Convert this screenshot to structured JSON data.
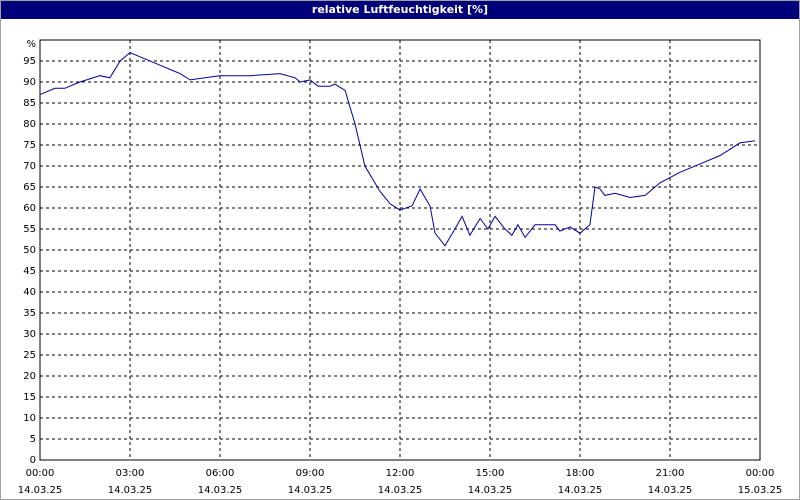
{
  "chart_data": {
    "type": "line",
    "title": "relative Luftfeuchtigkeit [%]",
    "y_unit_label": "%",
    "x": [
      0,
      0.5,
      0.83,
      1.33,
      2,
      2.33,
      2.67,
      3,
      3.5,
      4,
      4.5,
      4.67,
      5,
      5.5,
      6,
      7,
      8,
      8.5,
      8.67,
      9,
      9.27,
      9.67,
      9.83,
      10.17,
      10.5,
      10.83,
      11.33,
      11.67,
      12,
      12.4,
      12.67,
      13,
      13.17,
      13.5,
      13.83,
      14.07,
      14.33,
      14.67,
      14.93,
      15.17,
      15.5,
      15.73,
      15.93,
      16.17,
      16.5,
      17,
      17.17,
      17.33,
      17.67,
      18,
      18.33,
      18.5,
      18.67,
      18.83,
      19.17,
      19.67,
      20.17,
      20.67,
      21.33,
      22,
      22.67,
      23.33,
      23.83
    ],
    "series": [
      {
        "name": "relative Luftfeuchtigkeit",
        "color": "#0000a0",
        "values": [
          87,
          88.5,
          88.5,
          90,
          91.5,
          91,
          95,
          97,
          95.5,
          94,
          92.5,
          92,
          90.5,
          91,
          91.5,
          91.5,
          92,
          91,
          90,
          90.5,
          89,
          89,
          89.5,
          88,
          80,
          70,
          64,
          61,
          59.5,
          60.5,
          64.5,
          60.5,
          54,
          51,
          55,
          58,
          53.5,
          57.5,
          55,
          58,
          55,
          53.5,
          56,
          53,
          56,
          56,
          56,
          54.5,
          55.5,
          54,
          56,
          65,
          64.5,
          63,
          63.5,
          62.5,
          63,
          66,
          68.5,
          70.5,
          72.5,
          75.5,
          76
        ]
      }
    ],
    "xlim": [
      0,
      24
    ],
    "xticks": [
      {
        "value": 0,
        "label": "00:00"
      },
      {
        "value": 3,
        "label": "03:00"
      },
      {
        "value": 6,
        "label": "06:00"
      },
      {
        "value": 9,
        "label": "09:00"
      },
      {
        "value": 12,
        "label": "12:00"
      },
      {
        "value": 15,
        "label": "15:00"
      },
      {
        "value": 18,
        "label": "18:00"
      },
      {
        "value": 21,
        "label": "21:00"
      },
      {
        "value": 24,
        "label": "00:00"
      }
    ],
    "xtick_dates": [
      "14.03.25",
      "14.03.25",
      "14.03.25",
      "14.03.25",
      "14.03.25",
      "14.03.25",
      "14.03.25",
      "14.03.25",
      "15.03.25"
    ],
    "ylim": [
      0,
      100
    ],
    "yticks": [
      0,
      5,
      10,
      15,
      20,
      25,
      30,
      35,
      40,
      45,
      50,
      55,
      60,
      65,
      70,
      75,
      80,
      85,
      90,
      95
    ],
    "grid": true
  }
}
